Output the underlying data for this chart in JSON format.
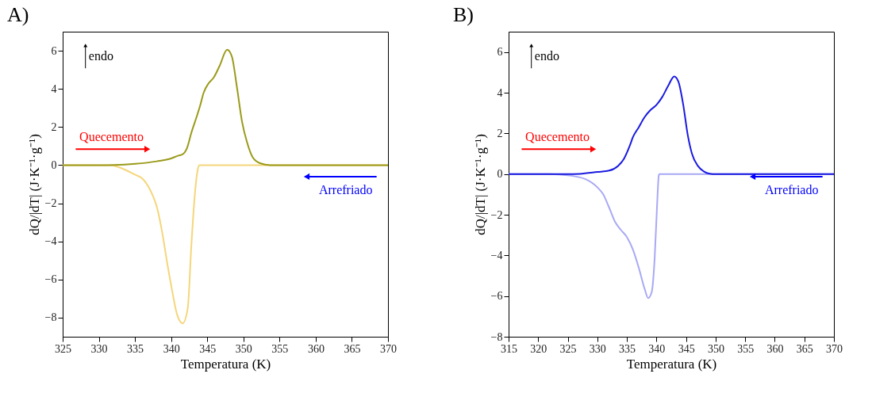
{
  "chart_data": [
    {
      "type": "line",
      "title": "A)",
      "xlabel": "Temperatura (K)",
      "ylabel": "dQ/|dT| (J·K⁻¹·g⁻¹)",
      "xlim": [
        325,
        370
      ],
      "xticks": [
        325,
        330,
        335,
        340,
        345,
        350,
        355,
        360,
        365,
        370
      ],
      "ylim": [
        -9,
        7
      ],
      "yticks": [
        -8,
        -6,
        -4,
        -2,
        0,
        2,
        4,
        6
      ],
      "annotations": [
        "endo",
        "Quecemento",
        "Arrefriado"
      ],
      "series": [
        {
          "color": "#f5d67a",
          "x": [
            325,
            331,
            332,
            333,
            335,
            336,
            337.1,
            338.1,
            338.8,
            339.4,
            340.1,
            340.8,
            341.6,
            342.3,
            342.8,
            343.3,
            343.7,
            343.9,
            370
          ],
          "values": [
            0,
            0,
            -0.02,
            -0.14,
            -0.5,
            -0.7,
            -1.3,
            -2.3,
            -3.6,
            -5.0,
            -6.5,
            -7.8,
            -8.3,
            -7.5,
            -4.2,
            -1.45,
            -0.2,
            0,
            0
          ]
        },
        {
          "color": "#9a9a1a",
          "x": [
            325,
            330,
            332,
            335,
            338,
            340,
            341,
            341.5,
            342.2,
            342.8,
            343.5,
            344,
            344.5,
            345.2,
            345.9,
            346.7,
            347.75,
            348.4,
            349.1,
            349.8,
            350.5,
            351.3,
            352.3,
            353.7,
            370
          ],
          "values": [
            0,
            0,
            0.01,
            0.07,
            0.2,
            0.35,
            0.5,
            0.55,
            0.9,
            1.7,
            2.5,
            3.1,
            3.8,
            4.3,
            4.6,
            5.2,
            6.05,
            5.7,
            4.1,
            2.3,
            1.2,
            0.4,
            0.1,
            0,
            0
          ]
        }
      ]
    },
    {
      "type": "line",
      "title": "B)",
      "xlabel": "Temperatura (K)",
      "ylabel": "dQ/|dT| (J·K⁻¹·g⁻¹)",
      "xlim": [
        315,
        370
      ],
      "xticks": [
        315,
        320,
        325,
        330,
        335,
        340,
        345,
        350,
        355,
        360,
        365,
        370
      ],
      "ylim": [
        -8,
        7
      ],
      "yticks": [
        -8,
        -6,
        -4,
        -2,
        0,
        2,
        4,
        6
      ],
      "annotations": [
        "endo",
        "Quecemento",
        "Arrefriado"
      ],
      "series": [
        {
          "color": "#a9a9f5",
          "x": [
            315,
            322,
            325,
            328,
            330,
            331,
            332,
            333,
            334,
            335,
            336,
            337,
            338,
            338.6,
            339.2,
            339.7,
            340.1,
            340.4,
            340.5,
            370
          ],
          "values": [
            0,
            0,
            -0.06,
            -0.25,
            -0.65,
            -1.0,
            -1.65,
            -2.35,
            -2.75,
            -3.1,
            -3.7,
            -4.6,
            -5.65,
            -6.1,
            -5.8,
            -4.1,
            -1.55,
            -0.05,
            0,
            0
          ]
        },
        {
          "color": "#1a1ae0",
          "x": [
            315,
            325,
            327,
            330,
            332,
            333.5,
            334.5,
            335.5,
            336,
            337,
            338,
            339,
            340,
            341,
            342,
            343,
            343.7,
            344.5,
            345.3,
            346,
            347,
            348,
            349,
            350,
            370
          ],
          "values": [
            0,
            0,
            0.01,
            0.1,
            0.17,
            0.4,
            0.75,
            1.4,
            1.8,
            2.3,
            2.8,
            3.15,
            3.4,
            3.8,
            4.35,
            4.8,
            4.55,
            3.45,
            1.9,
            1.0,
            0.4,
            0.13,
            0.02,
            0,
            0
          ]
        }
      ]
    }
  ]
}
